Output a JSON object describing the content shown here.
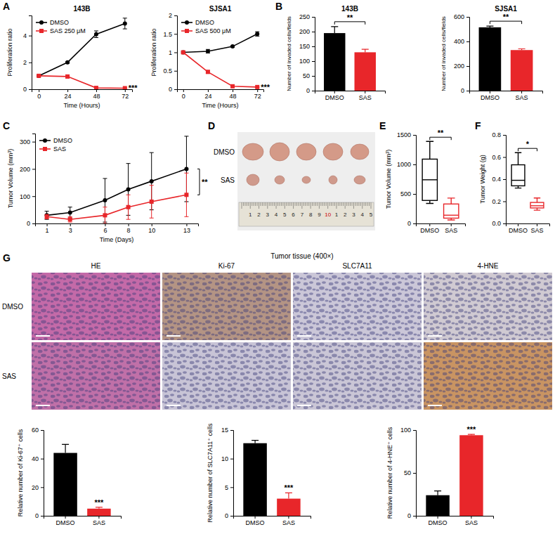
{
  "panel_labels": [
    "A",
    "B",
    "C",
    "D",
    "E",
    "F",
    "G"
  ],
  "chart_data": [
    {
      "type": "line",
      "title": "143B",
      "x_label": "Time (Hours)",
      "y_label": "Proliferation ratio",
      "x": [
        0,
        24,
        48,
        72
      ],
      "xlim": [
        -6,
        78
      ],
      "xticks": [
        0,
        24,
        48,
        72
      ],
      "ylim": [
        0,
        5.5
      ],
      "yticks": [
        0,
        2,
        4
      ],
      "legend": "upper left",
      "annotation": "***",
      "series": [
        {
          "name": "DMSO",
          "color": "#000000",
          "marker": "circle",
          "values": [
            1,
            2,
            4.1,
            4.9
          ],
          "errors": [
            0.05,
            0.06,
            0.25,
            0.4
          ]
        },
        {
          "name": "SAS 250 μM",
          "color": "#e8262a",
          "marker": "square",
          "values": [
            1,
            0.95,
            0.1,
            0.08
          ],
          "errors": [
            0.05,
            0.12,
            0.04,
            0.03
          ]
        }
      ]
    },
    {
      "type": "line",
      "title": "SJSA1",
      "x_label": "Time (Hours)",
      "y_label": "Proliferation ratio",
      "x": [
        0,
        24,
        48,
        72
      ],
      "xlim": [
        -6,
        78
      ],
      "xticks": [
        0,
        24,
        48,
        72
      ],
      "ylim": [
        0,
        2
      ],
      "yticks": [
        0,
        0.5,
        1,
        1.5,
        2
      ],
      "legend": "upper left",
      "annotation": "***",
      "series": [
        {
          "name": "DMSO",
          "color": "#000000",
          "marker": "circle",
          "values": [
            1,
            1.03,
            1.16,
            1.5
          ],
          "errors": [
            0.03,
            0.05,
            0.02,
            0.06
          ]
        },
        {
          "name": "SAS 500 μM",
          "color": "#e8262a",
          "marker": "square",
          "values": [
            1,
            0.47,
            0.08,
            0.06
          ],
          "errors": [
            0.02,
            0.04,
            0.01,
            0.01
          ]
        }
      ]
    },
    {
      "type": "bar",
      "title": "143B",
      "y_label": "Number of invaded cells/fields",
      "categories": [
        "DMSO",
        "SAS"
      ],
      "values": [
        195,
        130
      ],
      "errors": [
        22,
        10
      ],
      "colors": [
        "#000000",
        "#e8262a"
      ],
      "ylim": [
        0,
        250
      ],
      "yticks": [
        0,
        50,
        100,
        150,
        200,
        250
      ],
      "annotation": "**"
    },
    {
      "type": "bar",
      "title": "SJSA1",
      "y_label": "Number of invaded cells/fields",
      "categories": [
        "DMSO",
        "SAS"
      ],
      "values": [
        515,
        330
      ],
      "errors": [
        10,
        10
      ],
      "colors": [
        "#000000",
        "#e8262a"
      ],
      "ylim": [
        0,
        600
      ],
      "yticks": [
        0,
        200,
        400,
        600
      ],
      "annotation": "**"
    },
    {
      "type": "line",
      "x_label": "Time (Days)",
      "y_label": "Tumor Volume (mm³)",
      "x": [
        1,
        3,
        6,
        8,
        10,
        13
      ],
      "xlim": [
        0,
        14
      ],
      "xticks": [
        1,
        3,
        6,
        8,
        10,
        13
      ],
      "ylim": [
        0,
        330
      ],
      "yticks": [
        0,
        100,
        200,
        300
      ],
      "legend": "upper left",
      "annotation": "**",
      "series": [
        {
          "name": "DMSO",
          "color": "#000000",
          "marker": "circle",
          "values": [
            30,
            40,
            85,
            125,
            155,
            200
          ],
          "errors": [
            15,
            20,
            80,
            95,
            105,
            120
          ]
        },
        {
          "name": "SAS",
          "color": "#e8262a",
          "marker": "square",
          "values": [
            25,
            15,
            30,
            60,
            80,
            105
          ],
          "errors": [
            8,
            10,
            30,
            45,
            60,
            80
          ]
        }
      ]
    },
    {
      "type": "box",
      "y_label": "Tumor Volume (mm³)",
      "categories": [
        "DMSO",
        "SAS"
      ],
      "boxes": [
        {
          "min": 340,
          "q1": 390,
          "median": 740,
          "q3": 1090,
          "max": 1390
        },
        {
          "min": 60,
          "q1": 90,
          "median": 140,
          "q3": 330,
          "max": 430
        }
      ],
      "colors": [
        "#000000",
        "#e8262a"
      ],
      "ylim": [
        0,
        1500
      ],
      "yticks": [
        0,
        500,
        1000,
        1500
      ],
      "annotation": "**"
    },
    {
      "type": "box",
      "y_label": "Tumor Weight (g)",
      "categories": [
        "DMSO",
        "SAS"
      ],
      "boxes": [
        {
          "min": 0.32,
          "q1": 0.34,
          "median": 0.39,
          "q3": 0.53,
          "max": 0.64
        },
        {
          "min": 0.12,
          "q1": 0.14,
          "median": 0.16,
          "q3": 0.19,
          "max": 0.23
        }
      ],
      "colors": [
        "#000000",
        "#e8262a"
      ],
      "ylim": [
        0,
        0.8
      ],
      "yticks": [
        {
          "value": 0,
          "label": "0.0"
        },
        0.2,
        0.4,
        0.6,
        0.8
      ],
      "annotation": "*"
    },
    {
      "type": "bar",
      "y_label": "Relative number of Ki-67⁺ cells",
      "categories": [
        "DMSO",
        "SAS"
      ],
      "values": [
        44,
        5
      ],
      "errors": [
        6,
        1
      ],
      "colors": [
        "#000000",
        "#e8262a"
      ],
      "ylim": [
        0,
        60
      ],
      "yticks": [
        0,
        20,
        40,
        60
      ],
      "annotation": "***"
    },
    {
      "type": "bar",
      "y_label": "Relative number of SLC7A11⁺ cells",
      "categories": [
        "DMSO",
        "SAS"
      ],
      "values": [
        12.7,
        3
      ],
      "errors": [
        0.5,
        1
      ],
      "colors": [
        "#000000",
        "#e8262a"
      ],
      "ylim": [
        0,
        15
      ],
      "yticks": [
        0,
        5,
        10,
        15
      ],
      "annotation": "***"
    },
    {
      "type": "bar",
      "y_label": "Relative number of 4-HNE⁺ cells",
      "categories": [
        "DMSO",
        "SAS"
      ],
      "values": [
        24,
        94
      ],
      "errors": [
        5,
        1
      ],
      "colors": [
        "#000000",
        "#e8262a"
      ],
      "ylim": [
        0,
        100
      ],
      "yticks": [
        0,
        50,
        100
      ],
      "annotation": "***"
    }
  ],
  "photo": {
    "rows": [
      "DMSO",
      "SAS"
    ],
    "ruler": [
      1,
      2,
      3,
      4,
      5,
      6,
      7,
      8,
      9,
      10,
      1,
      2,
      3,
      4,
      5
    ]
  },
  "tissue": {
    "title": "Tumor tissue (400×)",
    "columns": [
      "HE",
      "Ki-67",
      "SLC7A11",
      "4-HNE"
    ],
    "rows": [
      "DMSO",
      "SAS"
    ]
  }
}
